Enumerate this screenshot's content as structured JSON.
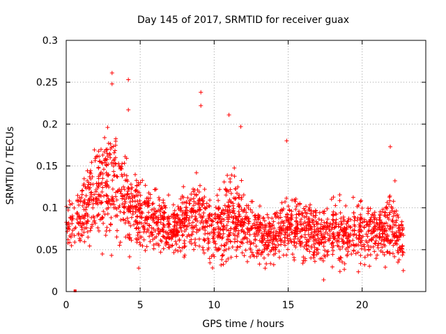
{
  "chart_data": {
    "type": "scatter",
    "title": "Day 145 of 2017, SRMTID for receiver guax",
    "xlabel": "GPS time / hours",
    "ylabel": "SRMTID / TECUs",
    "xlim": [
      0,
      24.3
    ],
    "ylim": [
      0,
      0.3
    ],
    "xticks": [
      0,
      5,
      10,
      15,
      20
    ],
    "xtick_labels": [
      "0",
      "5",
      "10",
      "15",
      "20"
    ],
    "yticks": [
      0,
      0.05,
      0.1,
      0.15,
      0.2,
      0.25,
      0.3
    ],
    "ytick_labels": [
      "0",
      "0.05",
      "0.1",
      "0.15",
      "0.2",
      "0.25",
      "0.3"
    ],
    "grid": true,
    "legend": "none",
    "series_color": "#ff0000",
    "marker": "plus",
    "outlier_points": [
      {
        "x": 0.6,
        "y": 0.0
      },
      {
        "x": 3.1,
        "y": 0.261
      },
      {
        "x": 3.1,
        "y": 0.248
      },
      {
        "x": 4.2,
        "y": 0.253
      },
      {
        "x": 4.2,
        "y": 0.217
      },
      {
        "x": 9.1,
        "y": 0.238
      },
      {
        "x": 9.1,
        "y": 0.222
      },
      {
        "x": 11.0,
        "y": 0.211
      },
      {
        "x": 11.8,
        "y": 0.197
      },
      {
        "x": 14.9,
        "y": 0.18
      },
      {
        "x": 21.9,
        "y": 0.173
      },
      {
        "x": 17.4,
        "y": 0.014
      },
      {
        "x": 18.5,
        "y": 0.024
      },
      {
        "x": 4.9,
        "y": 0.028
      }
    ],
    "envelope": [
      {
        "x": 0.0,
        "center": 0.085,
        "spread": 0.03
      },
      {
        "x": 1.0,
        "center": 0.09,
        "spread": 0.035
      },
      {
        "x": 2.0,
        "center": 0.12,
        "spread": 0.045
      },
      {
        "x": 3.0,
        "center": 0.13,
        "spread": 0.06
      },
      {
        "x": 4.0,
        "center": 0.105,
        "spread": 0.045
      },
      {
        "x": 5.0,
        "center": 0.095,
        "spread": 0.035
      },
      {
        "x": 6.0,
        "center": 0.085,
        "spread": 0.03
      },
      {
        "x": 7.0,
        "center": 0.075,
        "spread": 0.028
      },
      {
        "x": 8.0,
        "center": 0.085,
        "spread": 0.03
      },
      {
        "x": 9.0,
        "center": 0.095,
        "spread": 0.04
      },
      {
        "x": 10.0,
        "center": 0.07,
        "spread": 0.03
      },
      {
        "x": 11.0,
        "center": 0.085,
        "spread": 0.045
      },
      {
        "x": 12.0,
        "center": 0.08,
        "spread": 0.035
      },
      {
        "x": 13.0,
        "center": 0.07,
        "spread": 0.03
      },
      {
        "x": 14.0,
        "center": 0.065,
        "spread": 0.025
      },
      {
        "x": 15.0,
        "center": 0.08,
        "spread": 0.03
      },
      {
        "x": 16.0,
        "center": 0.07,
        "spread": 0.03
      },
      {
        "x": 17.0,
        "center": 0.065,
        "spread": 0.03
      },
      {
        "x": 18.0,
        "center": 0.075,
        "spread": 0.032
      },
      {
        "x": 19.0,
        "center": 0.065,
        "spread": 0.03
      },
      {
        "x": 20.0,
        "center": 0.075,
        "spread": 0.035
      },
      {
        "x": 21.0,
        "center": 0.07,
        "spread": 0.03
      },
      {
        "x": 22.0,
        "center": 0.08,
        "spread": 0.04
      },
      {
        "x": 22.8,
        "center": 0.06,
        "spread": 0.025
      }
    ],
    "dense_point_count": 2200,
    "data_x_range": [
      0.0,
      22.8
    ]
  }
}
